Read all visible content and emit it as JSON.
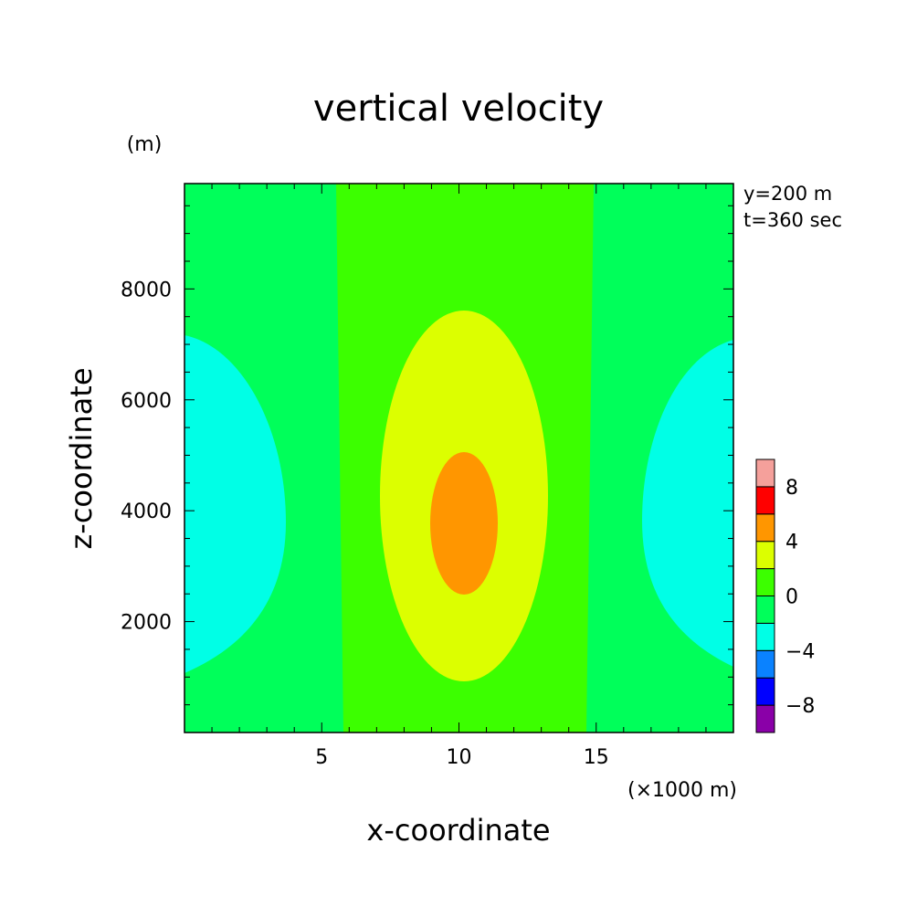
{
  "chart_data": {
    "type": "heatmap",
    "title": "vertical velocity",
    "ylabel": "z-coordinate",
    "xlabel": "x-coordinate",
    "yunit": "(m)",
    "xunit": "(×1000 m)",
    "annotations": [
      "y=200 m",
      "t=360 sec"
    ],
    "xlim": [
      0,
      20
    ],
    "ylim": [
      0,
      9900
    ],
    "xticks": [
      5,
      10,
      15
    ],
    "xtick_labels": [
      "5",
      "10",
      "15"
    ],
    "yticks": [
      2000,
      4000,
      6000,
      8000
    ],
    "ytick_labels": [
      "2000",
      "4000",
      "6000",
      "8000"
    ],
    "colorbar": {
      "levels": [
        -10,
        -8,
        -6,
        -4,
        -2,
        0,
        2,
        4,
        6,
        8,
        10
      ],
      "colors": [
        "#8a00a8",
        "#0000ff",
        "#0a82ff",
        "#00ffe6",
        "#00ff5a",
        "#3cff00",
        "#dcff00",
        "#ff9600",
        "#ff0000",
        "#f5a09b"
      ],
      "tick_values": [
        8,
        4,
        0,
        -4,
        -8
      ],
      "tick_labels": [
        "8",
        "4",
        "0",
        "−4",
        "−8"
      ]
    },
    "regions": [
      {
        "name": "background",
        "range": [
          -2,
          0
        ],
        "color": "#00ff5a"
      },
      {
        "name": "central updraft band",
        "range": [
          0,
          2
        ],
        "color": "#3cff00"
      },
      {
        "name": "updraft core outer",
        "range": [
          2,
          4
        ],
        "color": "#dcff00"
      },
      {
        "name": "updraft core inner",
        "range": [
          4,
          6
        ],
        "color": "#ff9600"
      },
      {
        "name": "left downdraft",
        "range": [
          -4,
          -2
        ],
        "color": "#00ffe6"
      },
      {
        "name": "right downdraft",
        "range": [
          -4,
          -2
        ],
        "color": "#00ffe6"
      }
    ]
  }
}
